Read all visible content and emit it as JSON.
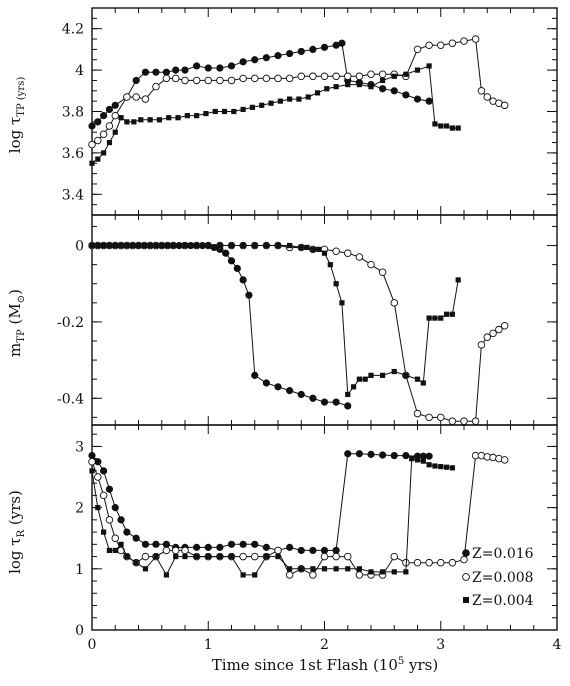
{
  "figure": {
    "xlabel": "Time since 1st Flash (10",
    "xlabel_sup": "5",
    "xlabel_end": " yrs)",
    "ylabel_top": "log τ",
    "ylabel_top_sub": "TP (yrs)",
    "ylabel_mid": "m",
    "ylabel_mid_sub": "TP",
    "ylabel_mid_unit": " (M",
    "ylabel_mid_unit_sub": "⊙",
    "ylabel_mid_unit_end": ")",
    "ylabel_bot": "log τ",
    "ylabel_bot_sub": "R",
    "ylabel_bot_end": " (yrs)",
    "legend": [
      "Z=0.016",
      "Z=0.008",
      "Z=0.004"
    ]
  },
  "chart_data": [
    {
      "type": "line",
      "panel": "top",
      "ylabel": "log τTP (yrs)",
      "xlim": [
        0,
        4
      ],
      "ylim": [
        3.3,
        4.3
      ],
      "yticks": [
        "3.4",
        "3.6",
        "3.8",
        "4",
        "4.2"
      ],
      "series": [
        {
          "name": "Z=0.016",
          "marker": "filled-circle",
          "x": [
            0.0,
            0.05,
            0.1,
            0.15,
            0.2,
            0.3,
            0.38,
            0.46,
            0.55,
            0.64,
            0.72,
            0.8,
            0.9,
            1.0,
            1.1,
            1.2,
            1.3,
            1.4,
            1.5,
            1.6,
            1.7,
            1.8,
            1.9,
            2.0,
            2.1,
            2.15,
            2.2,
            2.3,
            2.4,
            2.5,
            2.6,
            2.7,
            2.8,
            2.9
          ],
          "y": [
            3.73,
            3.75,
            3.78,
            3.81,
            3.83,
            3.87,
            3.95,
            3.99,
            3.99,
            3.99,
            4.0,
            4.0,
            4.02,
            4.01,
            4.01,
            4.02,
            4.04,
            4.05,
            4.06,
            4.07,
            4.08,
            4.09,
            4.1,
            4.11,
            4.12,
            4.13,
            3.95,
            3.94,
            3.93,
            3.91,
            3.9,
            3.88,
            3.86,
            3.85
          ]
        },
        {
          "name": "Z=0.008",
          "marker": "open-circle",
          "x": [
            0.0,
            0.05,
            0.1,
            0.15,
            0.2,
            0.3,
            0.38,
            0.46,
            0.55,
            0.64,
            0.72,
            0.8,
            0.9,
            1.0,
            1.1,
            1.2,
            1.3,
            1.4,
            1.5,
            1.6,
            1.7,
            1.8,
            1.9,
            2.0,
            2.1,
            2.2,
            2.3,
            2.4,
            2.5,
            2.6,
            2.7,
            2.8,
            2.9,
            3.0,
            3.1,
            3.2,
            3.3,
            3.35,
            3.4,
            3.45,
            3.5,
            3.55
          ],
          "y": [
            3.64,
            3.66,
            3.69,
            3.73,
            3.78,
            3.87,
            3.87,
            3.86,
            3.92,
            3.96,
            3.96,
            3.95,
            3.95,
            3.95,
            3.95,
            3.95,
            3.96,
            3.96,
            3.96,
            3.96,
            3.96,
            3.97,
            3.97,
            3.97,
            3.97,
            3.97,
            3.97,
            3.98,
            3.98,
            3.98,
            3.97,
            4.1,
            4.12,
            4.12,
            4.13,
            4.14,
            4.15,
            3.9,
            3.87,
            3.85,
            3.84,
            3.83
          ]
        },
        {
          "name": "Z=0.004",
          "marker": "filled-square",
          "x": [
            0.0,
            0.05,
            0.1,
            0.15,
            0.2,
            0.25,
            0.3,
            0.36,
            0.42,
            0.5,
            0.58,
            0.66,
            0.74,
            0.82,
            0.9,
            0.98,
            1.06,
            1.14,
            1.22,
            1.3,
            1.38,
            1.46,
            1.54,
            1.62,
            1.7,
            1.78,
            1.86,
            1.94,
            2.02,
            2.1,
            2.2,
            2.3,
            2.4,
            2.5,
            2.6,
            2.7,
            2.8,
            2.9,
            2.95,
            3.0,
            3.05,
            3.1,
            3.15
          ],
          "y": [
            3.55,
            3.57,
            3.6,
            3.65,
            3.7,
            3.77,
            3.75,
            3.75,
            3.76,
            3.76,
            3.76,
            3.77,
            3.77,
            3.78,
            3.78,
            3.79,
            3.8,
            3.8,
            3.8,
            3.81,
            3.82,
            3.83,
            3.84,
            3.85,
            3.86,
            3.86,
            3.87,
            3.89,
            3.91,
            3.92,
            3.93,
            3.93,
            3.92,
            3.95,
            3.97,
            3.98,
            4.0,
            4.02,
            3.74,
            3.73,
            3.73,
            3.72,
            3.72
          ]
        }
      ]
    },
    {
      "type": "line",
      "panel": "middle",
      "ylabel": "mTP (M⊙)",
      "xlim": [
        0,
        4
      ],
      "ylim": [
        -0.47,
        0.08
      ],
      "yticks": [
        "0",
        "-0.2",
        "-0.4"
      ],
      "series": [
        {
          "name": "Z=0.016",
          "marker": "filled-circle",
          "x": [
            0.0,
            0.05,
            0.1,
            0.15,
            0.2,
            0.25,
            0.3,
            0.35,
            0.4,
            0.45,
            0.5,
            0.55,
            0.6,
            0.65,
            0.7,
            0.75,
            0.8,
            0.85,
            0.9,
            0.95,
            1.0,
            1.05,
            1.1,
            1.15,
            1.2,
            1.25,
            1.3,
            1.35,
            1.4,
            1.5,
            1.6,
            1.7,
            1.8,
            1.9,
            2.0,
            2.1,
            2.2
          ],
          "y": [
            0.0,
            0.0,
            0.0,
            0.0,
            0.0,
            0.0,
            0.0,
            0.0,
            0.0,
            0.0,
            0.0,
            0.0,
            0.0,
            0.0,
            0.0,
            0.0,
            0.0,
            0.0,
            0.0,
            0.0,
            0.0,
            -0.005,
            -0.01,
            -0.02,
            -0.04,
            -0.06,
            -0.09,
            -0.13,
            -0.34,
            -0.36,
            -0.37,
            -0.38,
            -0.39,
            -0.4,
            -0.41,
            -0.41,
            -0.42
          ]
        },
        {
          "name": "Z=0.008",
          "marker": "open-circle",
          "x": [
            0.0,
            0.05,
            0.1,
            0.15,
            0.2,
            0.25,
            0.3,
            0.35,
            0.4,
            0.45,
            0.5,
            0.55,
            0.6,
            0.65,
            0.7,
            0.8,
            0.9,
            1.0,
            1.1,
            1.2,
            1.3,
            1.4,
            1.5,
            1.6,
            1.7,
            1.8,
            1.9,
            2.0,
            2.1,
            2.2,
            2.3,
            2.4,
            2.5,
            2.6,
            2.7,
            2.8,
            2.9,
            3.0,
            3.1,
            3.2,
            3.3,
            3.35,
            3.4,
            3.45,
            3.5,
            3.55
          ],
          "y": [
            0.0,
            0.0,
            0.0,
            0.0,
            0.0,
            0.0,
            0.0,
            0.0,
            0.0,
            0.0,
            0.0,
            0.0,
            0.0,
            0.0,
            0.0,
            0.0,
            0.0,
            0.0,
            0.0,
            0.0,
            0.0,
            0.0,
            0.0,
            0.0,
            -0.005,
            -0.005,
            -0.01,
            -0.01,
            -0.015,
            -0.02,
            -0.03,
            -0.05,
            -0.07,
            -0.15,
            -0.34,
            -0.44,
            -0.45,
            -0.45,
            -0.46,
            -0.46,
            -0.46,
            -0.26,
            -0.24,
            -0.23,
            -0.22,
            -0.21
          ]
        },
        {
          "name": "Z=0.004",
          "marker": "filled-square",
          "x": [
            0.0,
            0.05,
            0.1,
            0.15,
            0.2,
            0.25,
            0.3,
            0.35,
            0.4,
            0.45,
            0.5,
            0.55,
            0.6,
            0.65,
            0.7,
            0.75,
            0.8,
            0.85,
            0.9,
            1.0,
            1.1,
            1.2,
            1.3,
            1.4,
            1.5,
            1.6,
            1.7,
            1.8,
            1.85,
            1.9,
            1.95,
            2.0,
            2.05,
            2.1,
            2.15,
            2.2,
            2.25,
            2.3,
            2.35,
            2.4,
            2.5,
            2.6,
            2.7,
            2.8,
            2.85,
            2.9,
            2.95,
            3.0,
            3.05,
            3.1,
            3.15
          ],
          "y": [
            0.0,
            0.0,
            0.0,
            0.0,
            0.0,
            0.0,
            0.0,
            0.0,
            0.0,
            0.0,
            0.0,
            0.0,
            0.0,
            0.0,
            0.0,
            0.0,
            0.0,
            0.0,
            0.0,
            0.0,
            0.0,
            0.0,
            0.0,
            0.0,
            0.0,
            0.0,
            0.0,
            -0.005,
            -0.005,
            -0.01,
            -0.01,
            -0.02,
            -0.05,
            -0.1,
            -0.15,
            -0.39,
            -0.37,
            -0.35,
            -0.35,
            -0.34,
            -0.34,
            -0.33,
            -0.34,
            -0.35,
            -0.36,
            -0.19,
            -0.19,
            -0.19,
            -0.18,
            -0.18,
            -0.09
          ]
        }
      ]
    },
    {
      "type": "line",
      "panel": "bottom",
      "ylabel": "log τR (yrs)",
      "xlabel": "Time since 1st Flash (10^5 yrs)",
      "xlim": [
        0,
        4
      ],
      "ylim": [
        0,
        3.35
      ],
      "xticks": [
        "0",
        "1",
        "2",
        "3",
        "4"
      ],
      "yticks": [
        "0",
        "1",
        "2",
        "3"
      ],
      "legend_position": "lower-right",
      "series": [
        {
          "name": "Z=0.016",
          "marker": "filled-circle",
          "x": [
            0.0,
            0.05,
            0.1,
            0.15,
            0.2,
            0.25,
            0.3,
            0.38,
            0.46,
            0.55,
            0.64,
            0.72,
            0.8,
            0.9,
            1.0,
            1.1,
            1.2,
            1.3,
            1.4,
            1.5,
            1.6,
            1.7,
            1.8,
            1.9,
            2.0,
            2.1,
            2.2,
            2.3,
            2.4,
            2.5,
            2.6,
            2.7,
            2.8,
            2.85,
            2.9
          ],
          "y": [
            2.85,
            2.75,
            2.6,
            2.3,
            2.0,
            1.8,
            1.6,
            1.5,
            1.4,
            1.4,
            1.4,
            1.35,
            1.35,
            1.35,
            1.35,
            1.35,
            1.4,
            1.4,
            1.4,
            1.35,
            1.3,
            1.35,
            1.3,
            1.3,
            1.3,
            1.3,
            2.88,
            2.88,
            2.87,
            2.86,
            2.85,
            2.85,
            2.84,
            2.84,
            2.84
          ]
        },
        {
          "name": "Z=0.008",
          "marker": "open-circle",
          "x": [
            0.0,
            0.05,
            0.1,
            0.15,
            0.2,
            0.25,
            0.3,
            0.38,
            0.46,
            0.55,
            0.64,
            0.72,
            0.8,
            0.9,
            1.0,
            1.1,
            1.2,
            1.3,
            1.4,
            1.5,
            1.6,
            1.7,
            1.8,
            1.9,
            2.0,
            2.1,
            2.2,
            2.3,
            2.4,
            2.5,
            2.6,
            2.7,
            2.8,
            2.9,
            3.0,
            3.1,
            3.2,
            3.3,
            3.35,
            3.4,
            3.45,
            3.5,
            3.55
          ],
          "y": [
            2.75,
            2.5,
            2.2,
            1.8,
            1.5,
            1.3,
            1.2,
            1.1,
            1.2,
            1.2,
            1.3,
            1.3,
            1.3,
            1.2,
            1.2,
            1.2,
            1.2,
            1.2,
            1.2,
            1.2,
            1.3,
            0.9,
            1.0,
            0.9,
            1.2,
            1.2,
            1.2,
            0.9,
            0.9,
            0.9,
            1.2,
            1.1,
            1.1,
            1.1,
            1.1,
            1.1,
            1.15,
            2.85,
            2.85,
            2.83,
            2.82,
            2.8,
            2.78
          ]
        },
        {
          "name": "Z=0.004",
          "marker": "filled-square",
          "x": [
            0.0,
            0.05,
            0.1,
            0.15,
            0.2,
            0.25,
            0.3,
            0.38,
            0.46,
            0.55,
            0.64,
            0.72,
            0.8,
            0.9,
            1.0,
            1.1,
            1.2,
            1.3,
            1.4,
            1.5,
            1.6,
            1.7,
            1.8,
            1.9,
            2.0,
            2.1,
            2.2,
            2.3,
            2.4,
            2.5,
            2.6,
            2.7,
            2.75,
            2.8,
            2.85,
            2.9,
            2.95,
            3.0,
            3.05,
            3.1
          ],
          "y": [
            2.6,
            2.0,
            1.6,
            1.3,
            1.3,
            1.4,
            1.2,
            1.1,
            1.0,
            1.2,
            0.9,
            1.2,
            1.2,
            1.2,
            1.2,
            1.2,
            1.2,
            0.9,
            0.9,
            1.2,
            1.2,
            1.0,
            1.0,
            1.0,
            1.0,
            1.0,
            1.0,
            1.0,
            0.95,
            0.95,
            0.95,
            0.95,
            2.8,
            2.78,
            2.76,
            2.7,
            2.68,
            2.67,
            2.66,
            2.65
          ]
        }
      ]
    }
  ]
}
